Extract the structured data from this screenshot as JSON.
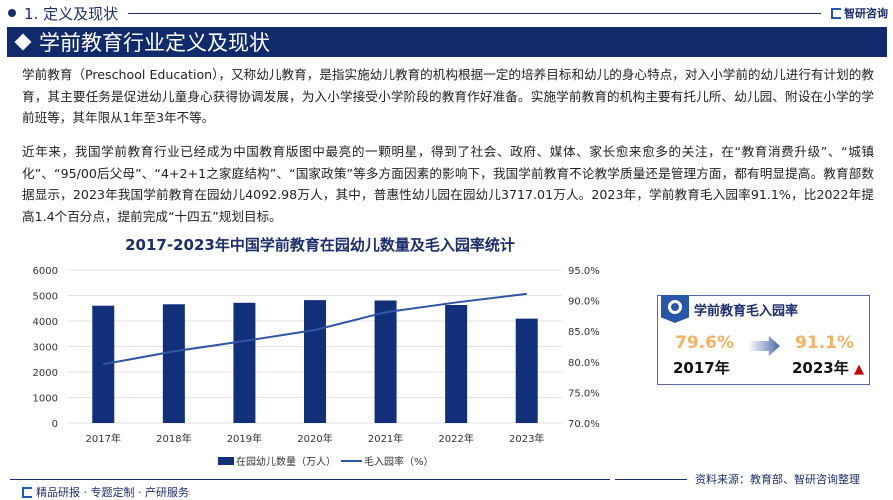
{
  "header": {
    "section": "1. 定义及现状",
    "brand": "智研咨询",
    "banner": "学前教育行业定义及现状"
  },
  "paragraphs": [
    "学前教育（Preschool Education），又称幼儿教育，是指实施幼儿教育的机构根据一定的培养目标和幼儿的身心特点，对入小学前的幼儿进行有计划的教育，其主要任务是促进幼儿童身心获得协调发展，为入小学接受小学阶段的教育作好准备。实施学前教育的机构主要有托儿所、幼儿园、附设在小学的学前班等，其年限从1年至3年不等。",
    "近年来，我国学前教育行业已经成为中国教育版图中最亮的一颗明星，得到了社会、政府、媒体、家长愈来愈多的关注，在“教育消费升级”、“城镇化”、“95/00后父母”、“4+2+1之家庭结构”、“国家政策”等多方面因素的影响下，我国学前教育不论教学质量还是管理方面，都有明显提高。教育部数据显示，2023年我国学前教育在园幼儿4092.98万人，其中，普惠性幼儿园在园幼儿3717.01万人。2023年，学前教育毛入园率91.1%，比2022年提高1.4个百分点，提前完成“十四五”规划目标。"
  ],
  "chart_data": {
    "type": "bar+line",
    "title": "2017-2023年中国学前教育在园幼儿数量及毛入园率统计",
    "categories": [
      "2017年",
      "2018年",
      "2019年",
      "2020年",
      "2021年",
      "2022年",
      "2023年"
    ],
    "series": [
      {
        "name": "在园幼儿数量（万人）",
        "type": "bar",
        "axis": "left",
        "color": "#12307a",
        "values": [
          4600,
          4656,
          4714,
          4818,
          4805,
          4628,
          4093
        ]
      },
      {
        "name": "毛入园率（%）",
        "type": "line",
        "axis": "right",
        "color": "#2f55a4",
        "values": [
          79.6,
          81.7,
          83.4,
          85.2,
          88.1,
          89.7,
          91.1
        ]
      }
    ],
    "y_left": {
      "min": 0,
      "max": 6000,
      "ticks": [
        "0",
        "1000",
        "2000",
        "3000",
        "4000",
        "5000",
        "6000"
      ]
    },
    "y_right": {
      "min": 70,
      "max": 95,
      "ticks": [
        "70.0%",
        "75.0%",
        "80.0%",
        "85.0%",
        "90.0%",
        "95.0%"
      ]
    },
    "grid": true,
    "legend": "bottom"
  },
  "card": {
    "title": "学前教育毛入园率",
    "from_value": "79.6%",
    "from_year": "2017年",
    "to_value": "91.1%",
    "to_year": "2023年",
    "trend_icon": "up-arrow-icon"
  },
  "source": "资料来源：教育部、智研咨询整理",
  "footer": "精品研报 · 专题定制 · 产研服务"
}
